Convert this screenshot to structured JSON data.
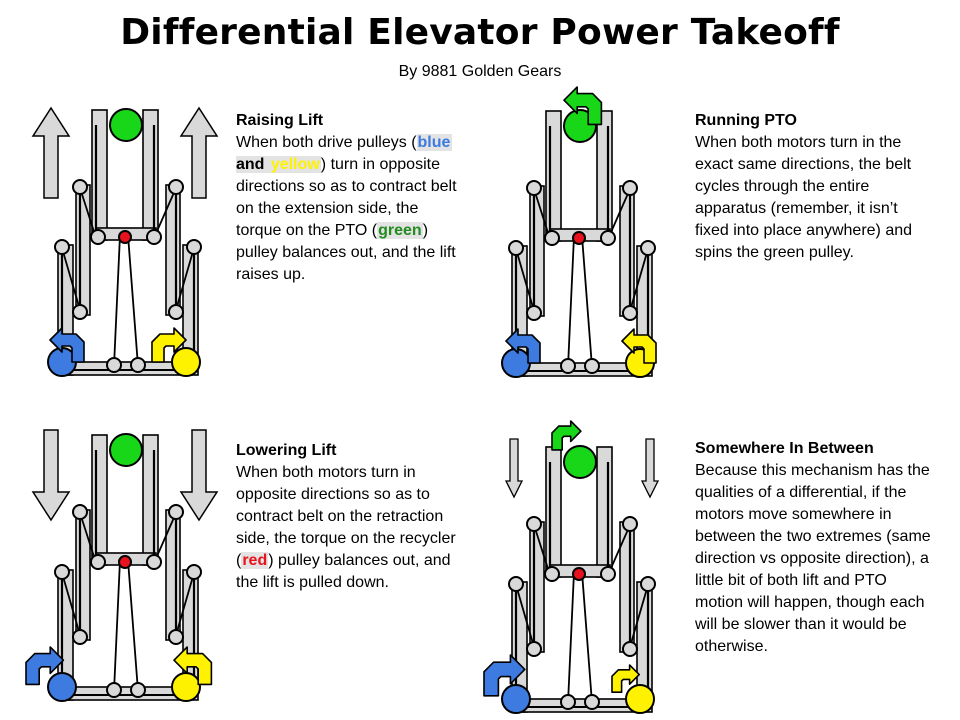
{
  "header": {
    "title": "Differential Elevator Power Takeoff",
    "subtitle": "By 9881 Golden Gears"
  },
  "colors": {
    "blue": "#3d7be0",
    "yellow": "#fff200",
    "green": "#18d618",
    "red": "#e8121d",
    "frame": "#d9d9d9"
  },
  "panels": {
    "raising": {
      "heading": "Raising Lift",
      "t1": "When both drive pulleys (",
      "blue_word": "blue",
      "t2": " and ",
      "yellow_word": "yellow",
      "t3": ") turn in opposite directions so as to contract belt on the extension side, the torque on the PTO (",
      "green_word": "green",
      "t4": ") pulley balances out, and the lift raises up."
    },
    "running_pto": {
      "heading": "Running PTO",
      "body": "When both motors turn in the exact same directions, the belt cycles through the entire apparatus (remember, it isn’t fixed into place anywhere) and spins the green pulley."
    },
    "lowering": {
      "heading": "Lowering Lift",
      "t1": "When both motors turn in opposite directions so as to contract belt on the retraction side, the torque on the recycler (",
      "red_word": "red",
      "t2": ") pulley balances out, and the lift is pulled down."
    },
    "between": {
      "heading": "Somewhere In Between",
      "body": "Because this mechanism has the qualities of a differential, if the motors move somewhere in between the two extremes (same direction vs opposite direction), a little bit of both lift and PTO motion will happen, though each will be slower than it would be otherwise."
    }
  }
}
